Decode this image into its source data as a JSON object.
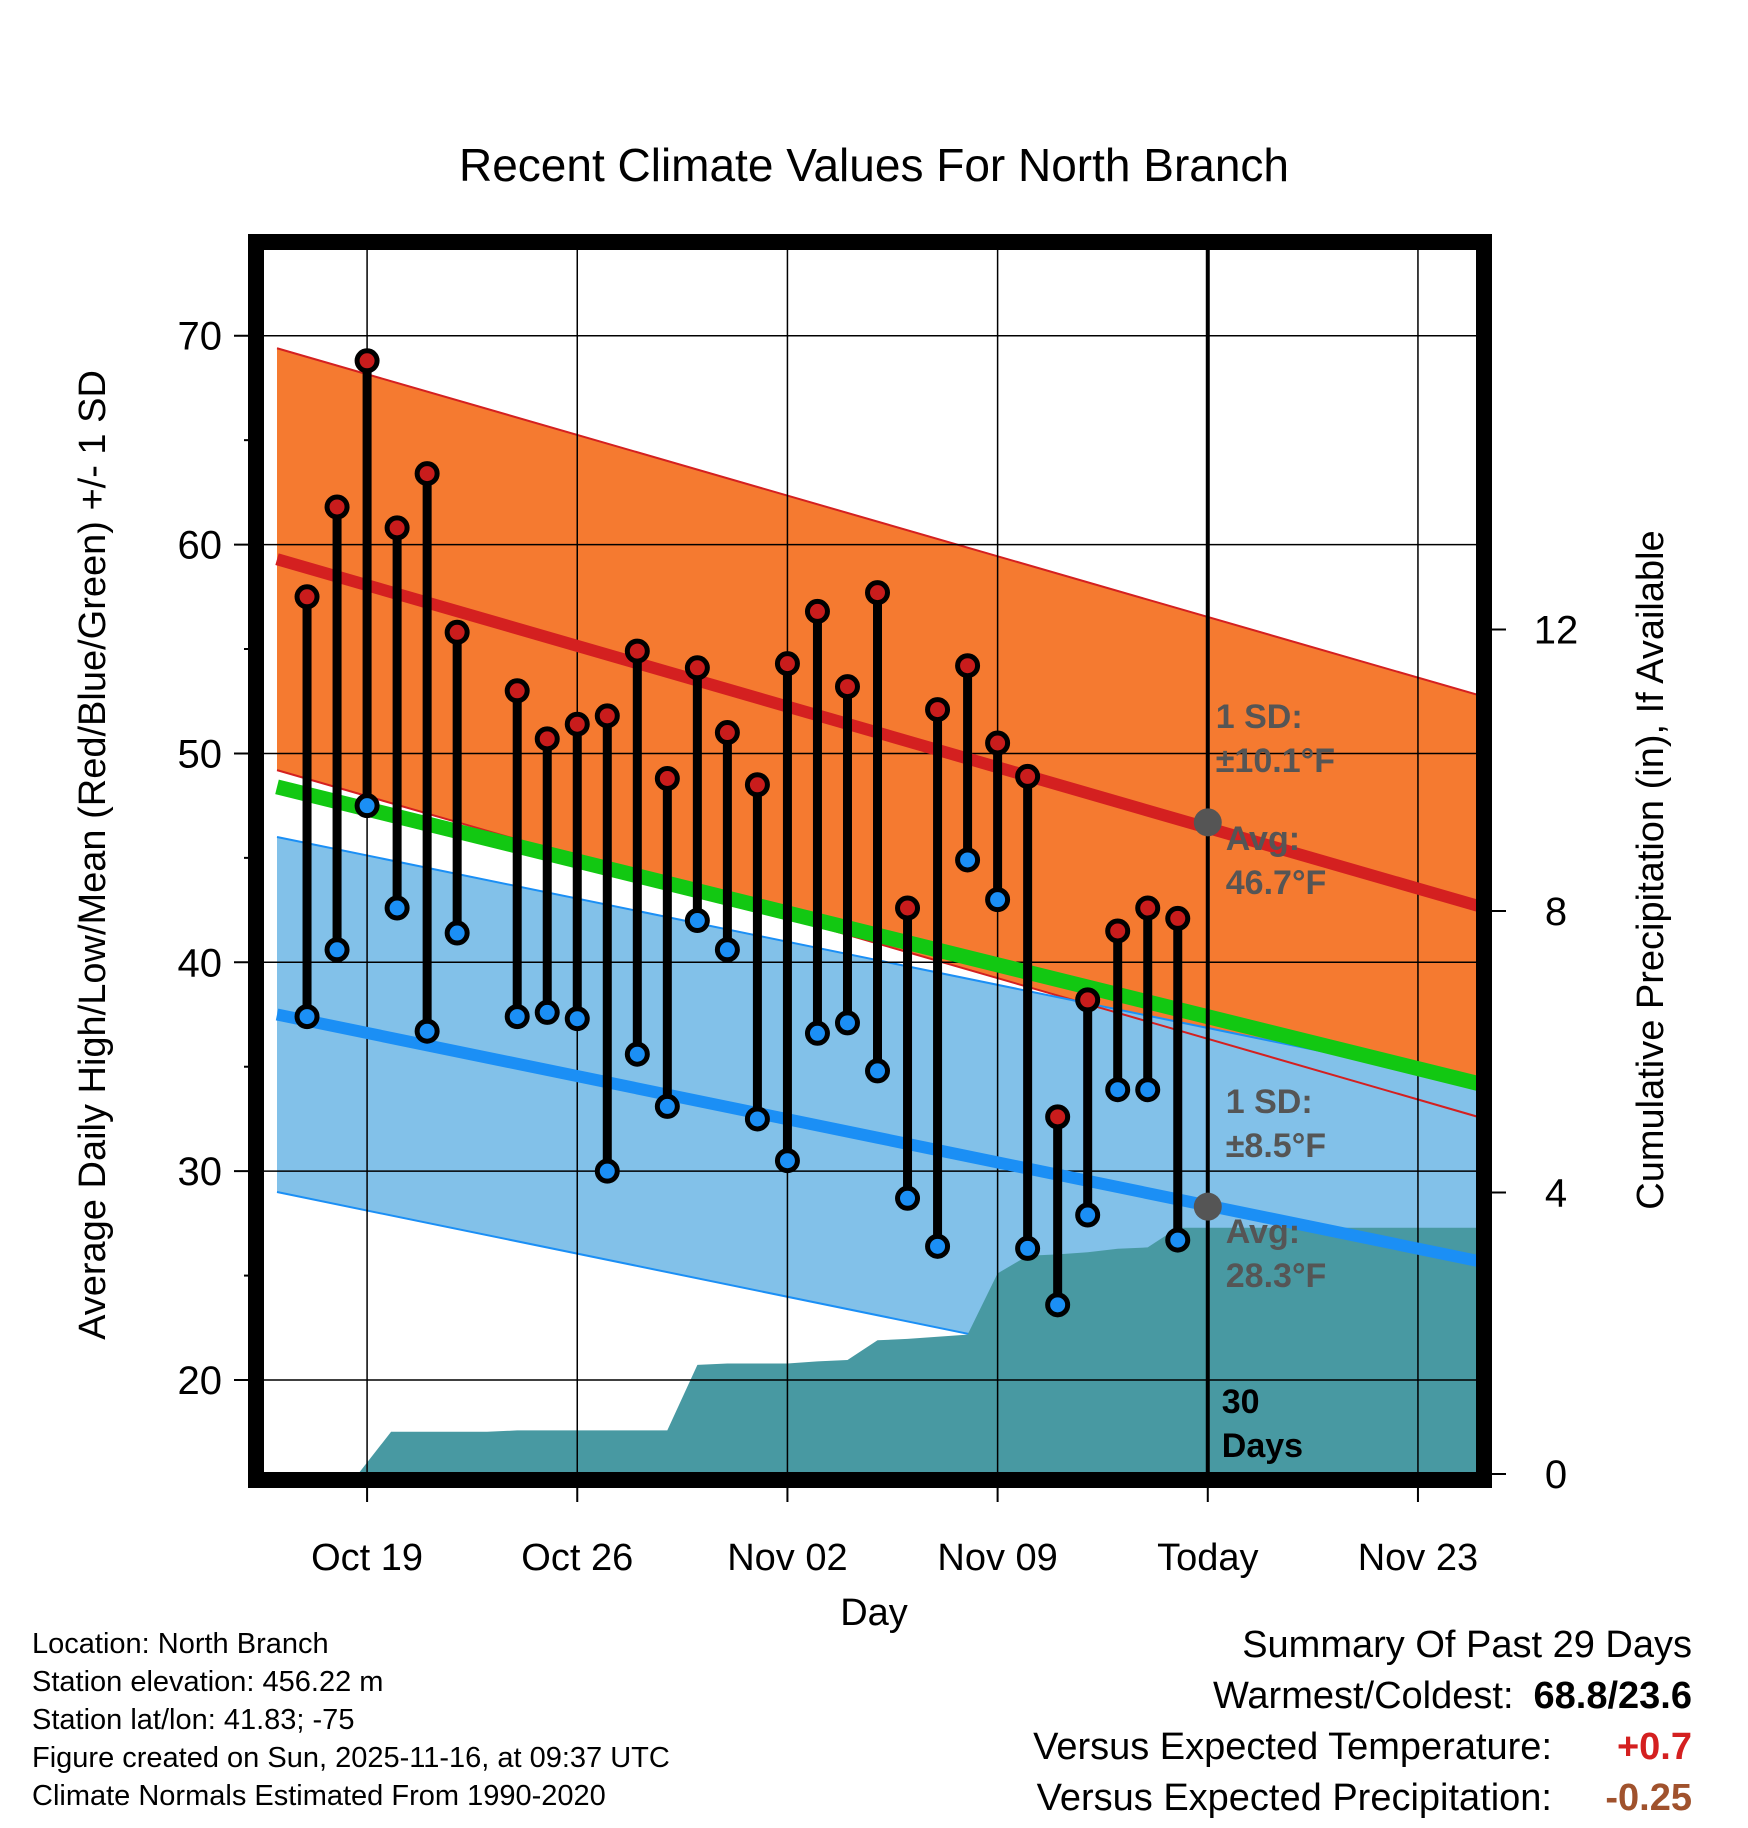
{
  "chart_data": {
    "type": "line",
    "title": "Recent Climate Values For North Branch",
    "xlabel": "Day",
    "ylabel": "Average Daily High/Low/Mean (Red/Blue/Green) +/- 1 SD",
    "y2label": "Cumulative Precipitation (in), If Available",
    "ylim": [
      15.5,
      74.2
    ],
    "y2lim": [
      0,
      17.42
    ],
    "xlim": [
      -3.5,
      37.0
    ],
    "x_tick_labels": [
      {
        "x": 0,
        "label": "Oct 19"
      },
      {
        "x": 7,
        "label": "Oct 26"
      },
      {
        "x": 14,
        "label": "Nov 02"
      },
      {
        "x": 21,
        "label": "Nov 09"
      },
      {
        "x": 28,
        "label": "Today"
      },
      {
        "x": 35,
        "label": "Nov 23"
      }
    ],
    "y_ticks": [
      20,
      30,
      40,
      50,
      60,
      70
    ],
    "y2_ticks": [
      0,
      4,
      8,
      12
    ],
    "today_x": 28,
    "today_label": "30\nDays",
    "normals": {
      "x": [
        -3,
        37
      ],
      "high_mean": [
        59.3,
        42.7
      ],
      "high_sd": 10.1,
      "low_mean": [
        37.5,
        25.7
      ],
      "low_sd": 8.5,
      "mean": [
        48.4,
        34.2
      ]
    },
    "annotations": {
      "high_sd": "1 SD:\n±10.1°F",
      "high_avg": "Avg:\n46.7°F",
      "low_sd": "1 SD:\n±8.5°F",
      "low_avg": "Avg:\n28.3°F",
      "high_today": 46.7,
      "low_today": 28.3
    },
    "daily": {
      "x": [
        -2,
        -1,
        0,
        1,
        2,
        3,
        5,
        6,
        7,
        8,
        9,
        10,
        11,
        12,
        13,
        14,
        15,
        16,
        17,
        18,
        19,
        20,
        21,
        22,
        23,
        24,
        25,
        26,
        27
      ],
      "high": [
        57.5,
        61.8,
        68.8,
        60.8,
        63.4,
        55.8,
        53.0,
        50.7,
        51.4,
        51.8,
        54.9,
        48.8,
        54.1,
        51.0,
        48.5,
        54.3,
        56.8,
        53.2,
        57.7,
        42.6,
        52.1,
        54.2,
        50.5,
        48.9,
        32.6,
        38.2,
        41.5,
        42.6,
        42.1
      ],
      "low": [
        37.4,
        40.6,
        47.5,
        42.6,
        36.7,
        41.4,
        37.4,
        37.6,
        37.3,
        30.0,
        35.6,
        33.1,
        42.0,
        40.6,
        32.5,
        30.5,
        36.6,
        37.1,
        34.8,
        28.7,
        26.4,
        44.9,
        43.0,
        26.3,
        23.6,
        27.9,
        33.9,
        33.9,
        26.7
      ]
    },
    "precip": {
      "x": [
        -3.5,
        -0.3,
        0.8,
        2,
        3,
        4,
        5,
        6,
        7,
        8,
        9,
        10,
        11,
        12,
        13,
        14,
        15,
        16,
        17,
        18,
        19,
        20,
        21,
        22,
        23,
        24,
        25,
        26,
        27,
        28,
        37.0
      ],
      "values": [
        0,
        0,
        0.6,
        0.6,
        0.6,
        0.6,
        0.62,
        0.62,
        0.62,
        0.62,
        0.62,
        0.62,
        1.55,
        1.57,
        1.57,
        1.57,
        1.6,
        1.62,
        1.9,
        1.92,
        1.95,
        1.98,
        2.85,
        3.1,
        3.12,
        3.15,
        3.2,
        3.22,
        3.5,
        3.5,
        3.5
      ]
    }
  },
  "footer": {
    "location": "Location: North Branch",
    "elevation": "Station elevation: 456.22 m",
    "latlon": "Station lat/lon: 41.83; -75",
    "created": "Figure created on Sun, 2025-11-16, at 09:37 UTC",
    "normals": "Climate Normals Estimated From 1990-2020"
  },
  "summary": {
    "title": "Summary Of Past 29 Days",
    "warm_cold_label": "Warmest/Coldest:",
    "warm_cold_value": "68.8/23.6",
    "temp_label": "Versus Expected Temperature:",
    "temp_value": "+0.7",
    "precip_label": "Versus Expected Precipitation:",
    "precip_value": "-0.25"
  },
  "colors": {
    "high_band": "#f57a30",
    "high_line": "#d42020",
    "low_band": "#82c1e9",
    "low_line": "#1b8ff5",
    "mean_line": "#12c812",
    "precip_fill": "#4899a2",
    "high_dot": "#c91c1c",
    "low_dot": "#1b8ff5",
    "annotation": "#555555",
    "temp_value": "#d42020",
    "precip_value": "#a0522d"
  }
}
